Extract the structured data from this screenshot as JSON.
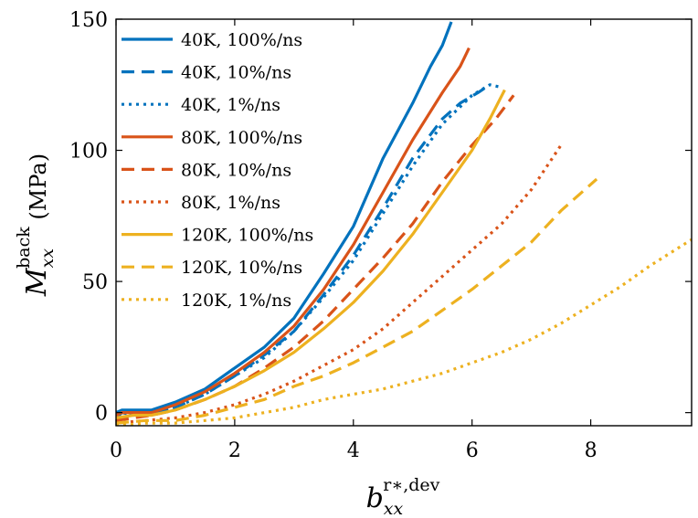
{
  "chart_data": {
    "type": "line",
    "title": "",
    "xlabel": {
      "base": "b",
      "sub": "xx",
      "sup": "r∗,dev"
    },
    "ylabel": {
      "base": "M",
      "sub": "xx",
      "sup": "back",
      "unit": " (MPa)"
    },
    "xlim": [
      0,
      9.7
    ],
    "ylim": [
      -5,
      150
    ],
    "xticks": [
      0,
      2,
      4,
      6,
      8
    ],
    "yticks": [
      0,
      50,
      100,
      150
    ],
    "xtick_labels": [
      "0",
      "2",
      "4",
      "6",
      "8"
    ],
    "ytick_labels": [
      "0",
      "50",
      "100",
      "150"
    ],
    "grid": false,
    "legend_position": "top-left",
    "colors": {
      "40K": "#0072BD",
      "80K": "#D95319",
      "120K": "#EDB120"
    },
    "series": [
      {
        "name": "40K, 100%/ns",
        "color": "#0072BD",
        "dash": "solid",
        "x": [
          0,
          0.1,
          0.3,
          0.6,
          1.0,
          1.5,
          2.0,
          2.5,
          3.0,
          3.5,
          4.0,
          4.5,
          5.0,
          5.3,
          5.5,
          5.65
        ],
        "y": [
          0,
          1,
          1,
          1,
          4,
          9,
          17,
          25,
          36,
          53,
          71,
          97,
          118,
          132,
          140,
          149
        ]
      },
      {
        "name": "40K, 10%/ns",
        "color": "#0072BD",
        "dash": "dashed",
        "x": [
          0,
          0.1,
          0.3,
          0.6,
          1.0,
          1.5,
          2.0,
          2.5,
          3.0,
          3.5,
          4.0,
          4.5,
          5.0,
          5.5,
          5.8,
          6.1,
          6.3
        ],
        "y": [
          -2,
          0,
          -1,
          0,
          2,
          7,
          14,
          22,
          31,
          45,
          60,
          78,
          97,
          112,
          118,
          122,
          125
        ]
      },
      {
        "name": "40K, 1%/ns",
        "color": "#0072BD",
        "dash": "dotted",
        "x": [
          0,
          0.2,
          0.6,
          1.0,
          1.5,
          2.0,
          2.5,
          3.0,
          3.5,
          4.0,
          4.5,
          5.0,
          5.5,
          6.0,
          6.3,
          6.5
        ],
        "y": [
          -3,
          -1,
          0,
          2,
          7,
          14,
          21,
          31,
          44,
          58,
          76,
          94,
          110,
          121,
          125,
          124
        ]
      },
      {
        "name": "80K, 100%/ns",
        "color": "#D95319",
        "dash": "solid",
        "x": [
          0,
          0.1,
          0.3,
          0.6,
          1.0,
          1.5,
          2.0,
          2.5,
          3.0,
          3.5,
          4.0,
          4.5,
          5.0,
          5.5,
          5.8,
          5.95
        ],
        "y": [
          -1,
          0,
          0,
          0,
          3,
          8,
          15,
          23,
          33,
          47,
          64,
          84,
          104,
          122,
          132,
          139
        ]
      },
      {
        "name": "80K, 10%/ns",
        "color": "#D95319",
        "dash": "dashed",
        "x": [
          0,
          0.3,
          0.6,
          1.0,
          1.5,
          2.0,
          2.5,
          3.0,
          3.5,
          4.0,
          4.5,
          5.0,
          5.5,
          6.0,
          6.4,
          6.7
        ],
        "y": [
          -3,
          -2,
          -1,
          1,
          5,
          10,
          17,
          25,
          35,
          47,
          59,
          72,
          88,
          102,
          112,
          121
        ]
      },
      {
        "name": "80K, 1%/ns",
        "color": "#D95319",
        "dash": "dotted",
        "x": [
          0,
          0.5,
          1.0,
          1.5,
          2.0,
          2.5,
          3.0,
          3.5,
          4.0,
          4.5,
          5.0,
          5.5,
          6.0,
          6.5,
          7.0,
          7.5
        ],
        "y": [
          -4,
          -3,
          -2,
          0,
          3,
          7,
          12,
          18,
          24,
          32,
          42,
          52,
          62,
          72,
          85,
          102
        ]
      },
      {
        "name": "120K, 100%/ns",
        "color": "#EDB120",
        "dash": "solid",
        "x": [
          0,
          0.3,
          0.6,
          1.0,
          1.5,
          2.0,
          2.5,
          3.0,
          3.5,
          4.0,
          4.5,
          5.0,
          5.5,
          6.0,
          6.3,
          6.55
        ],
        "y": [
          -2,
          -1,
          -1,
          1,
          5,
          10,
          16,
          23,
          32,
          42,
          54,
          68,
          84,
          100,
          112,
          123
        ]
      },
      {
        "name": "120K, 10%/ns",
        "color": "#EDB120",
        "dash": "dashed",
        "x": [
          0,
          0.5,
          1.0,
          1.5,
          2.0,
          2.5,
          3.0,
          3.5,
          4.0,
          4.5,
          5.0,
          5.5,
          6.0,
          6.5,
          7.0,
          7.5,
          8.1
        ],
        "y": [
          -4,
          -3,
          -3,
          -1,
          2,
          5,
          10,
          14,
          19,
          25,
          31,
          39,
          47,
          56,
          65,
          77,
          89
        ]
      },
      {
        "name": "120K, 1%/ns",
        "color": "#EDB120",
        "dash": "dotted",
        "x": [
          0,
          0.5,
          1.0,
          1.5,
          2.0,
          2.5,
          3.0,
          3.5,
          4.0,
          4.5,
          5.0,
          5.5,
          6.0,
          6.5,
          7.0,
          7.5,
          8.0,
          8.5,
          9.0,
          9.7
        ],
        "y": [
          -5,
          -4,
          -4,
          -3,
          -2,
          0,
          2,
          5,
          7,
          9,
          12,
          15,
          19,
          23,
          28,
          34,
          41,
          48,
          56,
          66
        ]
      }
    ]
  }
}
